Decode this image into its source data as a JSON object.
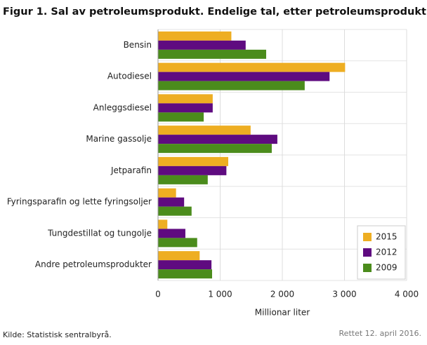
{
  "chart_data": {
    "type": "hbar",
    "title": "Figur 1. Sal av petroleumsprodukt. Endelige tal, etter petroleumsprodukt",
    "categories": [
      "Bensin",
      "Autodiesel",
      "Anleggsdiesel",
      "Marine gassolje",
      "Jetparafin",
      "Fyringsparafin og lette fyringsoljer",
      "Tungdestillat og tungolje",
      "Andre petroleumsprodukter"
    ],
    "series": [
      {
        "name": "2015",
        "color": "#eeae22",
        "values": [
          1180,
          3010,
          880,
          1490,
          1130,
          290,
          150,
          670
        ]
      },
      {
        "name": "2012",
        "color": "#5f0b80",
        "values": [
          1410,
          2760,
          880,
          1920,
          1100,
          420,
          440,
          860
        ]
      },
      {
        "name": "2009",
        "color": "#4b8c1c",
        "values": [
          1740,
          2360,
          735,
          1830,
          800,
          540,
          630,
          870
        ]
      }
    ],
    "xlim": [
      0,
      4000
    ],
    "xticks": [
      0,
      {
        "value": 1000,
        "label": "1 000"
      },
      {
        "value": 2000,
        "label": "2 000"
      },
      {
        "value": 3000,
        "label": "3 000"
      },
      {
        "value": 4000,
        "label": "4 000"
      }
    ],
    "xlabel": "Millionar liter",
    "grid": true,
    "legend": "lower-right",
    "source": "Kilde: Statistisk sentralbyrå.",
    "note": "Rettet 12. april 2016."
  }
}
